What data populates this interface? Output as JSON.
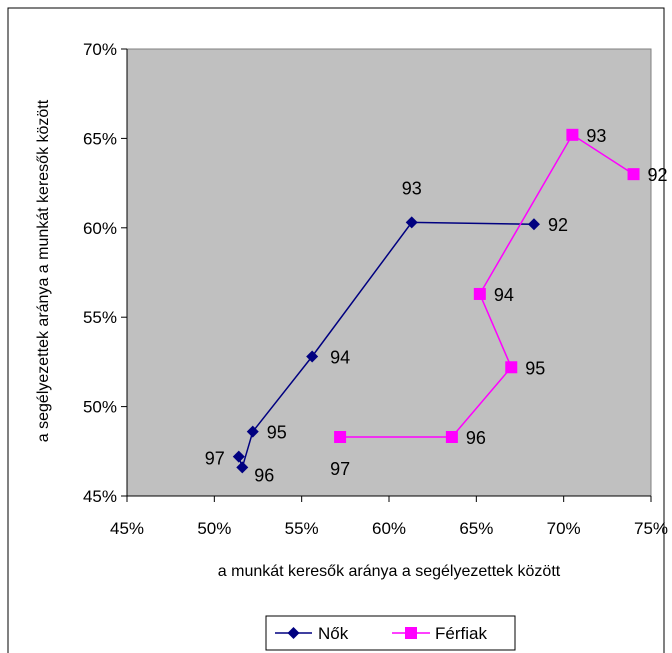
{
  "chart_data": {
    "type": "scatter",
    "xlabel": "a munkát keresők aránya a segélyezettek között",
    "ylabel": "a segélyezettek aránya a munkát keresők között",
    "xlim": [
      0.45,
      0.75
    ],
    "ylim": [
      0.45,
      0.7
    ],
    "x_ticks": [
      "45%",
      "50%",
      "55%",
      "60%",
      "65%",
      "70%",
      "75%"
    ],
    "y_ticks": [
      "45%",
      "50%",
      "55%",
      "60%",
      "65%",
      "70%"
    ],
    "legend_position": "bottom",
    "grid": false,
    "plot_background": "#c0c0c0",
    "series": [
      {
        "name": "Nők",
        "color": "#000080",
        "marker": "diamond",
        "points": [
          {
            "label": "92",
            "x": 0.683,
            "y": 0.602
          },
          {
            "label": "93",
            "x": 0.613,
            "y": 0.603
          },
          {
            "label": "94",
            "x": 0.556,
            "y": 0.528
          },
          {
            "label": "95",
            "x": 0.522,
            "y": 0.486
          },
          {
            "label": "96",
            "x": 0.516,
            "y": 0.466
          },
          {
            "label": "97",
            "x": 0.514,
            "y": 0.472
          }
        ]
      },
      {
        "name": "Férfiak",
        "color": "#ff00ff",
        "marker": "square",
        "points": [
          {
            "label": "92",
            "x": 0.74,
            "y": 0.63
          },
          {
            "label": "93",
            "x": 0.705,
            "y": 0.652
          },
          {
            "label": "94",
            "x": 0.652,
            "y": 0.563
          },
          {
            "label": "95",
            "x": 0.67,
            "y": 0.522
          },
          {
            "label": "96",
            "x": 0.636,
            "y": 0.483
          },
          {
            "label": "97",
            "x": 0.572,
            "y": 0.483
          }
        ]
      }
    ]
  }
}
